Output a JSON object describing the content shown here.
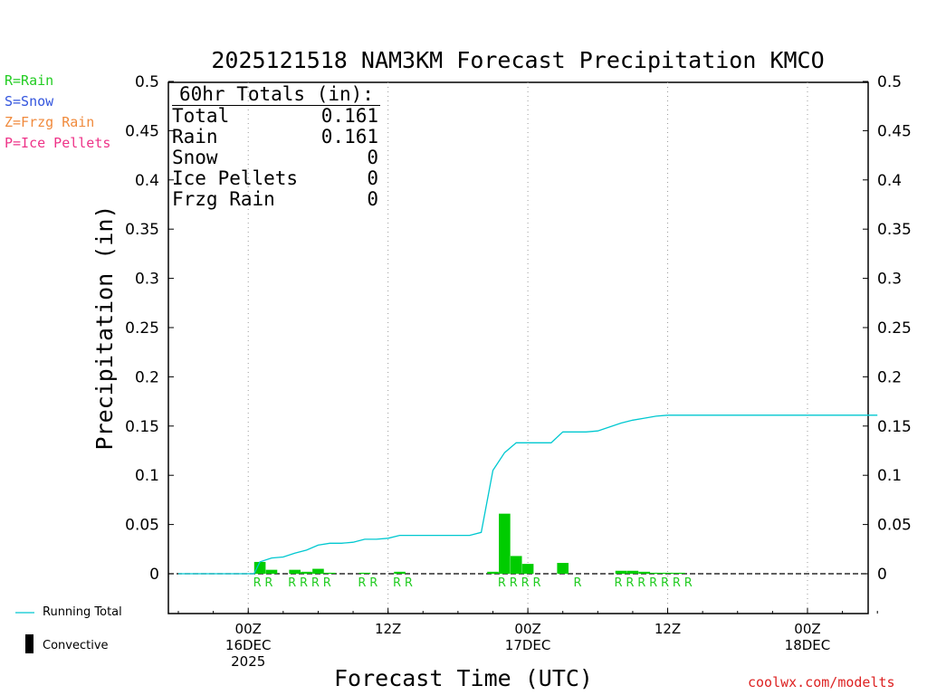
{
  "chart_data": {
    "type": "bar",
    "title": "2025121518 NAM3KM Forecast Precipitation KMCO",
    "xlabel": "Forecast Time (UTC)",
    "ylabel": "Precipitation (in)",
    "ylim": [
      -0.04,
      0.5
    ],
    "yticks": [
      "0.5",
      "0.45",
      "0.4",
      "0.35",
      "0.3",
      "0.25",
      "0.2",
      "0.15",
      "0.1",
      "0.05",
      "0"
    ],
    "xrange_hours": [
      0,
      60
    ],
    "xticks": [
      {
        "hour": 6,
        "lines": [
          "00Z",
          "16DEC",
          "2025"
        ]
      },
      {
        "hour": 18,
        "lines": [
          "12Z"
        ]
      },
      {
        "hour": 30,
        "lines": [
          "00Z",
          "17DEC"
        ]
      },
      {
        "hour": 42,
        "lines": [
          "12Z"
        ]
      },
      {
        "hour": 54,
        "lines": [
          "00Z",
          "18DEC"
        ]
      }
    ],
    "grid": "vertical dotted at ticks",
    "series": [
      {
        "name": "Convective",
        "type": "bar",
        "color": "#00cc00",
        "hours": [
          7,
          8,
          10,
          11,
          12,
          13,
          16,
          19,
          27,
          28,
          29,
          30,
          33,
          38,
          39,
          40,
          41,
          42,
          43
        ],
        "values": [
          0.012,
          0.004,
          0.004,
          0.002,
          0.005,
          0.001,
          0.001,
          0.002,
          0.002,
          0.061,
          0.018,
          0.01,
          0.011,
          0.003,
          0.003,
          0.002,
          0.001,
          0.001,
          0.001
        ]
      },
      {
        "name": "Running Total",
        "type": "line",
        "color": "#00c8d0",
        "hours": [
          0,
          1,
          2,
          3,
          4,
          5,
          6,
          6.5,
          7,
          8,
          9,
          10,
          11,
          12,
          13,
          14,
          15,
          16,
          17,
          18,
          19,
          20,
          21,
          22,
          23,
          24,
          25,
          26,
          27,
          28,
          29,
          30,
          31,
          32,
          33,
          34,
          35,
          36,
          37,
          38,
          39,
          40,
          41,
          42,
          43,
          44,
          45,
          46,
          47,
          48,
          49,
          50,
          51,
          52,
          53,
          54,
          55,
          56,
          57,
          58,
          59,
          60
        ],
        "values": [
          0,
          0,
          0,
          0,
          0,
          0,
          0,
          0,
          0.012,
          0.016,
          0.017,
          0.021,
          0.024,
          0.029,
          0.031,
          0.031,
          0.032,
          0.035,
          0.035,
          0.036,
          0.039,
          0.039,
          0.039,
          0.039,
          0.039,
          0.039,
          0.039,
          0.042,
          0.105,
          0.123,
          0.133,
          0.133,
          0.133,
          0.133,
          0.144,
          0.144,
          0.144,
          0.145,
          0.149,
          0.153,
          0.156,
          0.158,
          0.16,
          0.161,
          0.161,
          0.161,
          0.161,
          0.161,
          0.161,
          0.161,
          0.161,
          0.161,
          0.161,
          0.161,
          0.161,
          0.161,
          0.161,
          0.161,
          0.161,
          0.161,
          0.161,
          0.161
        ]
      }
    ],
    "ptype_markers": {
      "color": "#22cc22",
      "hours": [
        7,
        8,
        10,
        11,
        12,
        13,
        16,
        17,
        19,
        20,
        28,
        29,
        30,
        31,
        34.5,
        38,
        39,
        40,
        41,
        42,
        43,
        44
      ],
      "letters": [
        "R",
        "R",
        "R",
        "R",
        "R",
        "R",
        "R",
        "R",
        "R",
        "R",
        "R",
        "R",
        "R",
        "R",
        "R",
        "R",
        "R",
        "R",
        "R",
        "R",
        "R",
        "R"
      ]
    }
  },
  "totals": {
    "header": "60hr Totals (in):",
    "rows": [
      {
        "label": "Total",
        "value": "0.161"
      },
      {
        "label": "Rain",
        "value": "0.161"
      },
      {
        "label": "Snow",
        "value": "0"
      },
      {
        "label": "Ice Pellets",
        "value": "0"
      },
      {
        "label": "Frzg Rain",
        "value": "0"
      }
    ]
  },
  "ptype_legend": [
    {
      "text": "R=Rain",
      "color": "#22cc22"
    },
    {
      "text": "S=Snow",
      "color": "#3355dd"
    },
    {
      "text": "Z=Frzg Rain",
      "color": "#f08a3c"
    },
    {
      "text": "P=Ice Pellets",
      "color": "#ee3388"
    }
  ],
  "series_legend": {
    "running_total": "Running Total",
    "convective": "Convective"
  },
  "credit": "coolwx.com/modelts"
}
